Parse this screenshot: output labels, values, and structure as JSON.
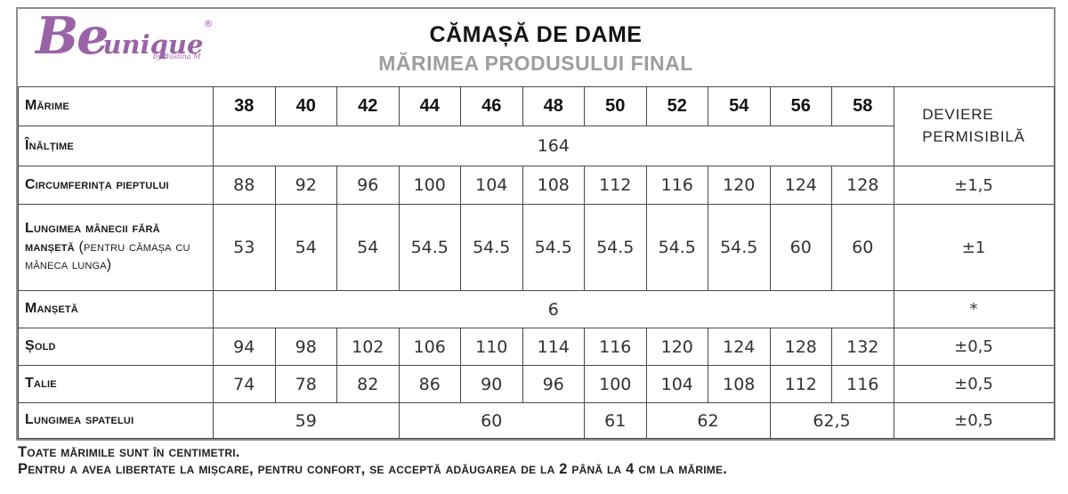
{
  "logo": {
    "word1": "Be",
    "word2": "unique",
    "registered": "®",
    "byline": "by Bustina M",
    "brand_color": "#9a63a8"
  },
  "header": {
    "title": "CĂMAȘĂ DE DAME",
    "subtitle": "MĂRIMEA PRODUSULUI FINAL"
  },
  "table": {
    "corner_label": "Mărime",
    "sizes": [
      "38",
      "40",
      "42",
      "44",
      "46",
      "48",
      "50",
      "52",
      "54",
      "56",
      "58"
    ],
    "deviation_header": "DEVIERE\nPERMISIBILĂ",
    "rows": [
      {
        "label": "Înălțime",
        "note": "",
        "cells": [
          [
            "164",
            11
          ]
        ],
        "deviation": null
      },
      {
        "label": "Circumferința pieptului",
        "note": "",
        "cells": [
          [
            "88",
            1
          ],
          [
            "92",
            1
          ],
          [
            "96",
            1
          ],
          [
            "100",
            1
          ],
          [
            "104",
            1
          ],
          [
            "108",
            1
          ],
          [
            "112",
            1
          ],
          [
            "116",
            1
          ],
          [
            "120",
            1
          ],
          [
            "124",
            1
          ],
          [
            "128",
            1
          ]
        ],
        "deviation": "±1,5"
      },
      {
        "label": "Lungimea mânecii fără manșetă",
        "note": "(pentru cămașa cu mâneca lunga)",
        "cells": [
          [
            "53",
            1
          ],
          [
            "54",
            1
          ],
          [
            "54",
            1
          ],
          [
            "54.5",
            1
          ],
          [
            "54.5",
            1
          ],
          [
            "54.5",
            1
          ],
          [
            "54.5",
            1
          ],
          [
            "54.5",
            1
          ],
          [
            "54.5",
            1
          ],
          [
            "60",
            1
          ],
          [
            "60",
            1
          ]
        ],
        "deviation": "±1"
      },
      {
        "label": "Manșetă",
        "note": "",
        "cells": [
          [
            "6",
            11
          ]
        ],
        "deviation": "*"
      },
      {
        "label": "Șold",
        "note": "",
        "cells": [
          [
            "94",
            1
          ],
          [
            "98",
            1
          ],
          [
            "102",
            1
          ],
          [
            "106",
            1
          ],
          [
            "110",
            1
          ],
          [
            "114",
            1
          ],
          [
            "116",
            1
          ],
          [
            "120",
            1
          ],
          [
            "124",
            1
          ],
          [
            "128",
            1
          ],
          [
            "132",
            1
          ]
        ],
        "deviation": "±0,5"
      },
      {
        "label": "Talie",
        "note": "",
        "cells": [
          [
            "74",
            1
          ],
          [
            "78",
            1
          ],
          [
            "82",
            1
          ],
          [
            "86",
            1
          ],
          [
            "90",
            1
          ],
          [
            "96",
            1
          ],
          [
            "100",
            1
          ],
          [
            "104",
            1
          ],
          [
            "108",
            1
          ],
          [
            "112",
            1
          ],
          [
            "116",
            1
          ]
        ],
        "deviation": "±0,5"
      },
      {
        "label": "Lungimea spatelui",
        "note": "",
        "cells": [
          [
            "59",
            3
          ],
          [
            "60",
            3
          ],
          [
            "61",
            1
          ],
          [
            "62",
            2
          ],
          [
            "62,5",
            2
          ]
        ],
        "deviation": "±0,5"
      }
    ]
  },
  "footer": {
    "line1": "Toate mărimile sunt în centimetri.",
    "line2": "Pentru a avea libertate la mișcare, pentru confort, se acceptă adăugarea de la 2 până la 4 cm la mărime."
  }
}
